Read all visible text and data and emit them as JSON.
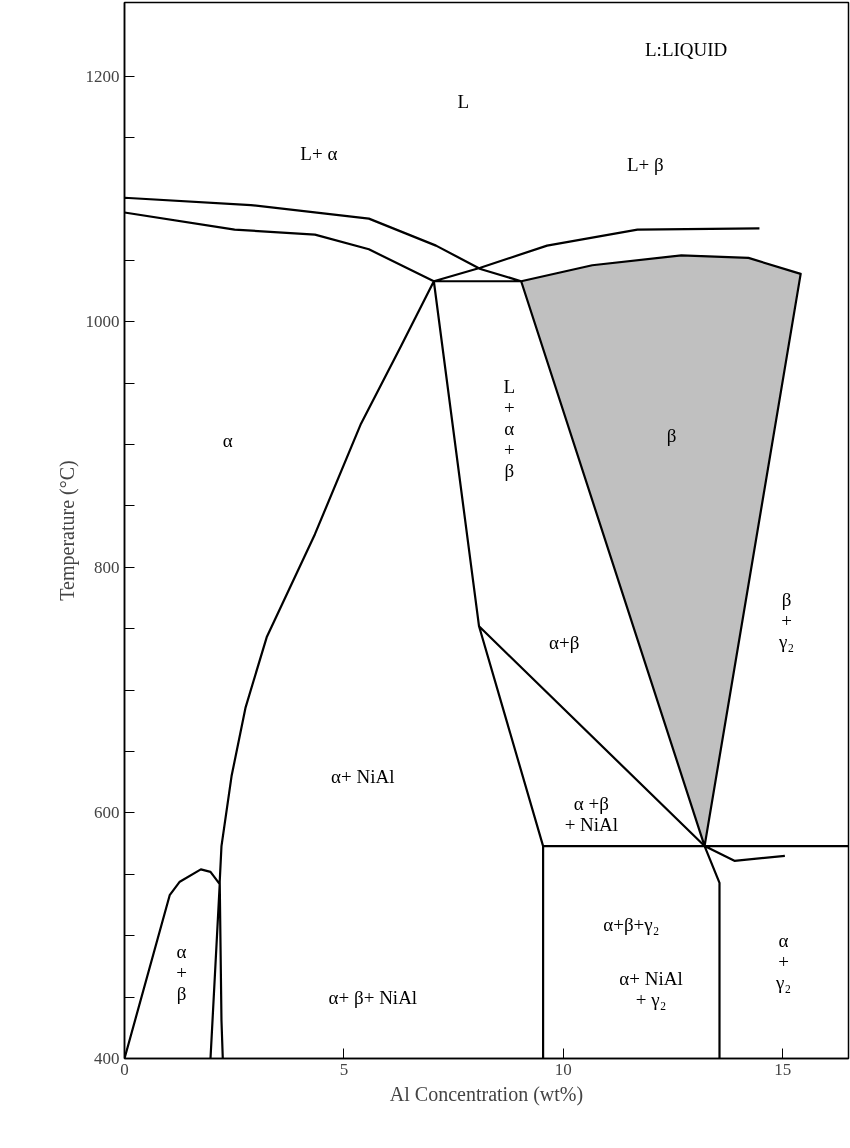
{
  "chart_data": {
    "type": "line",
    "xlabel": "Al Concentration (wt%)",
    "ylabel": "Temperature (°C)",
    "xlim": [
      0,
      16.5
    ],
    "ylim": [
      400,
      1260
    ],
    "xticks": [
      0,
      5,
      10,
      15
    ],
    "yticks": [
      400,
      {
        "value": 450,
        "label": null
      },
      {
        "value": 500,
        "label": null
      },
      {
        "value": 550,
        "label": null
      },
      600,
      {
        "value": 650,
        "label": null
      },
      {
        "value": 700,
        "label": null
      },
      {
        "value": 750,
        "label": null
      },
      800,
      {
        "value": 850,
        "label": null
      },
      {
        "value": 900,
        "label": null
      },
      {
        "value": 950,
        "label": null
      },
      1000,
      {
        "value": 1050,
        "label": null
      },
      {
        "value": 1100,
        "label": null
      },
      {
        "value": 1150,
        "label": null
      },
      1200
    ],
    "grid": false,
    "series": [
      {
        "type": "area",
        "color": "#c0c0c0",
        "x": [
          9.04,
          10.66,
          12.69,
          14.22,
          15.41,
          13.22
        ],
        "values": [
          1033,
          1046,
          1054,
          1052,
          1039,
          573
        ]
      },
      {
        "color": "#000000",
        "x": [
          0,
          2.88,
          5.57,
          7.1,
          8.11,
          9.04,
          null,
          0,
          2.51,
          4.34,
          5.57,
          7.05,
          9.04,
          null,
          7.05,
          8.11,
          9.63,
          11.69,
          14.47,
          null,
          7.05,
          8.08,
          9.54,
          9.54,
          null,
          8.08,
          13.22,
          null,
          9.54,
          16.5,
          null,
          13.22,
          13.56,
          13.56,
          null,
          13.22,
          13.9,
          15.05,
          null,
          7.05,
          6.3,
          5.39,
          4.34,
          3.24,
          2.76,
          2.44,
          2.21,
          2.17,
          2.21,
          2.24,
          null,
          0,
          1.03,
          1.26,
          1.74,
          1.96,
          2.17,
          1.96
        ],
        "values": [
          1101,
          1095,
          1084,
          1062,
          1043,
          1033,
          null,
          1089,
          1075,
          1071,
          1059,
          1033,
          1033,
          null,
          1033,
          1044,
          1062,
          1075,
          1076,
          null,
          1033,
          752,
          573,
          400,
          null,
          752,
          573,
          null,
          573,
          573,
          null,
          573,
          543,
          400,
          null,
          573,
          561,
          565,
          null,
          1033,
          980,
          917,
          827,
          743,
          686,
          630,
          573,
          544,
          431,
          400,
          null,
          400,
          533,
          544,
          554,
          552,
          542,
          400
        ]
      }
    ],
    "annotations": [
      "L:LIQUID",
      "L",
      "L+ α",
      "L+ β",
      "L\n+\nα\n+\nβ",
      "α",
      "β",
      "β\n+\nγ₂",
      "α+β",
      "α+ NiAl",
      "α +β\n+ NiAl",
      "α+β+γ₂",
      "α+ NiAl\n+ γ₂",
      "α\n+\nγ₂",
      "α\n+\nβ",
      "α+ β+ NiAl"
    ]
  }
}
